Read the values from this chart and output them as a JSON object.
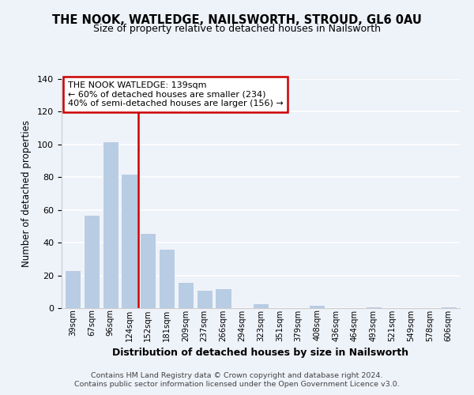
{
  "title1": "THE NOOK, WATLEDGE, NAILSWORTH, STROUD, GL6 0AU",
  "title2": "Size of property relative to detached houses in Nailsworth",
  "xlabel": "Distribution of detached houses by size in Nailsworth",
  "ylabel": "Number of detached properties",
  "categories": [
    "39sqm",
    "67sqm",
    "96sqm",
    "124sqm",
    "152sqm",
    "181sqm",
    "209sqm",
    "237sqm",
    "266sqm",
    "294sqm",
    "323sqm",
    "351sqm",
    "379sqm",
    "408sqm",
    "436sqm",
    "464sqm",
    "493sqm",
    "521sqm",
    "549sqm",
    "578sqm",
    "606sqm"
  ],
  "values": [
    23,
    57,
    102,
    82,
    46,
    36,
    16,
    11,
    12,
    0,
    3,
    0,
    0,
    2,
    0,
    0,
    1,
    0,
    0,
    0,
    1
  ],
  "bar_color": "#b8cce4",
  "bar_edge_color": "#ffffff",
  "vline_x": 3.5,
  "vline_color": "#cc0000",
  "annotation_title": "THE NOOK WATLEDGE: 139sqm",
  "annotation_line1": "← 60% of detached houses are smaller (234)",
  "annotation_line2": "40% of semi-detached houses are larger (156) →",
  "box_color": "#ffffff",
  "box_edge_color": "#cc0000",
  "ylim": [
    0,
    140
  ],
  "yticks": [
    0,
    20,
    40,
    60,
    80,
    100,
    120,
    140
  ],
  "footer1": "Contains HM Land Registry data © Crown copyright and database right 2024.",
  "footer2": "Contains public sector information licensed under the Open Government Licence v3.0.",
  "bg_color": "#eef2f9"
}
